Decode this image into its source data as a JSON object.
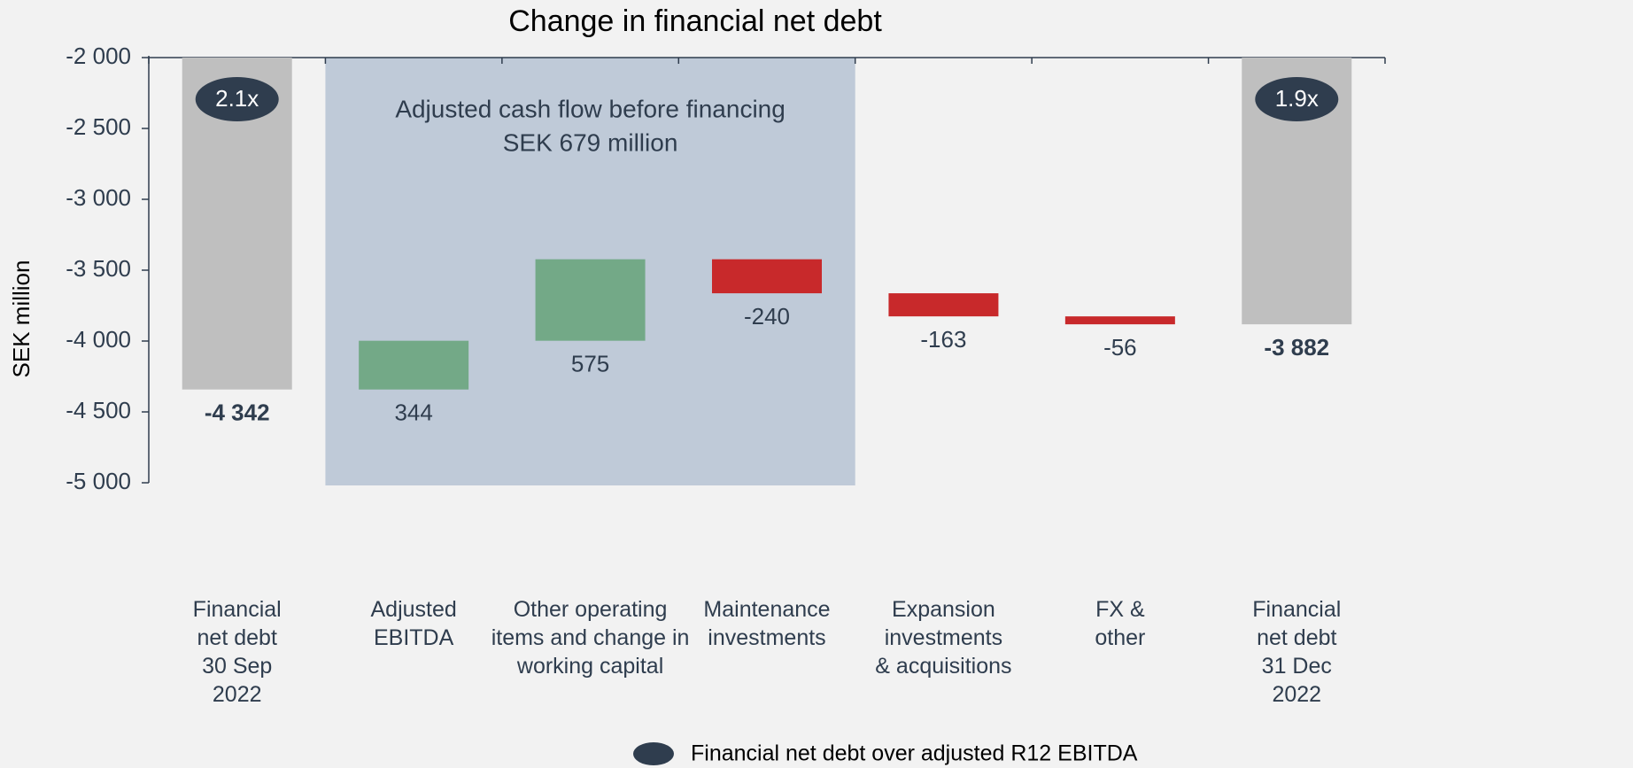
{
  "chart_data": {
    "type": "waterfall",
    "title": "Change in financial net debt",
    "y_label": "SEK million",
    "categories": [
      "Financial\nnet debt\n30 Sep\n2022",
      "Adjusted\nEBITDA",
      "Other operating\nitems and change in\nworking capital",
      "Maintenance\ninvestments",
      "Expansion\ninvestments\n& acquisitions",
      "FX &\nother",
      "Financial\nnet debt\n31 Dec\n2022"
    ],
    "values": [
      -4342,
      344,
      575,
      -240,
      -163,
      -56,
      -3882
    ],
    "value_labels": [
      "-4 342",
      "344",
      "575",
      "-240",
      "-163",
      "-56",
      "-3 882"
    ],
    "measure": [
      "total",
      "relative",
      "relative",
      "relative",
      "relative",
      "relative",
      "total"
    ],
    "colors": {
      "total": "#bfbfbf",
      "increase": "#73a987",
      "decrease": "#c8292b"
    },
    "ratio_labels": [
      "2.1x",
      null,
      null,
      null,
      null,
      null,
      "1.9x"
    ],
    "ratio_color": "#2f3d4e",
    "legend": "Financial net debt over adjusted R12 EBITDA",
    "highlight": {
      "lines": [
        "Adjusted cash flow before financing",
        "SEK 679 million"
      ],
      "from": 1,
      "to": 3,
      "color": "#bfcad8"
    },
    "ylim": [
      -5000,
      -2000
    ],
    "yticks": [
      {
        "value": -5000,
        "label": "-5 000"
      },
      {
        "value": -4500,
        "label": "-4 500"
      },
      {
        "value": -4000,
        "label": "-4 000"
      },
      {
        "value": -3500,
        "label": "-3 500"
      },
      {
        "value": -3000,
        "label": "-3 000"
      },
      {
        "value": -2500,
        "label": "-2 500"
      },
      {
        "value": -2000,
        "label": "-2 000"
      }
    ]
  }
}
